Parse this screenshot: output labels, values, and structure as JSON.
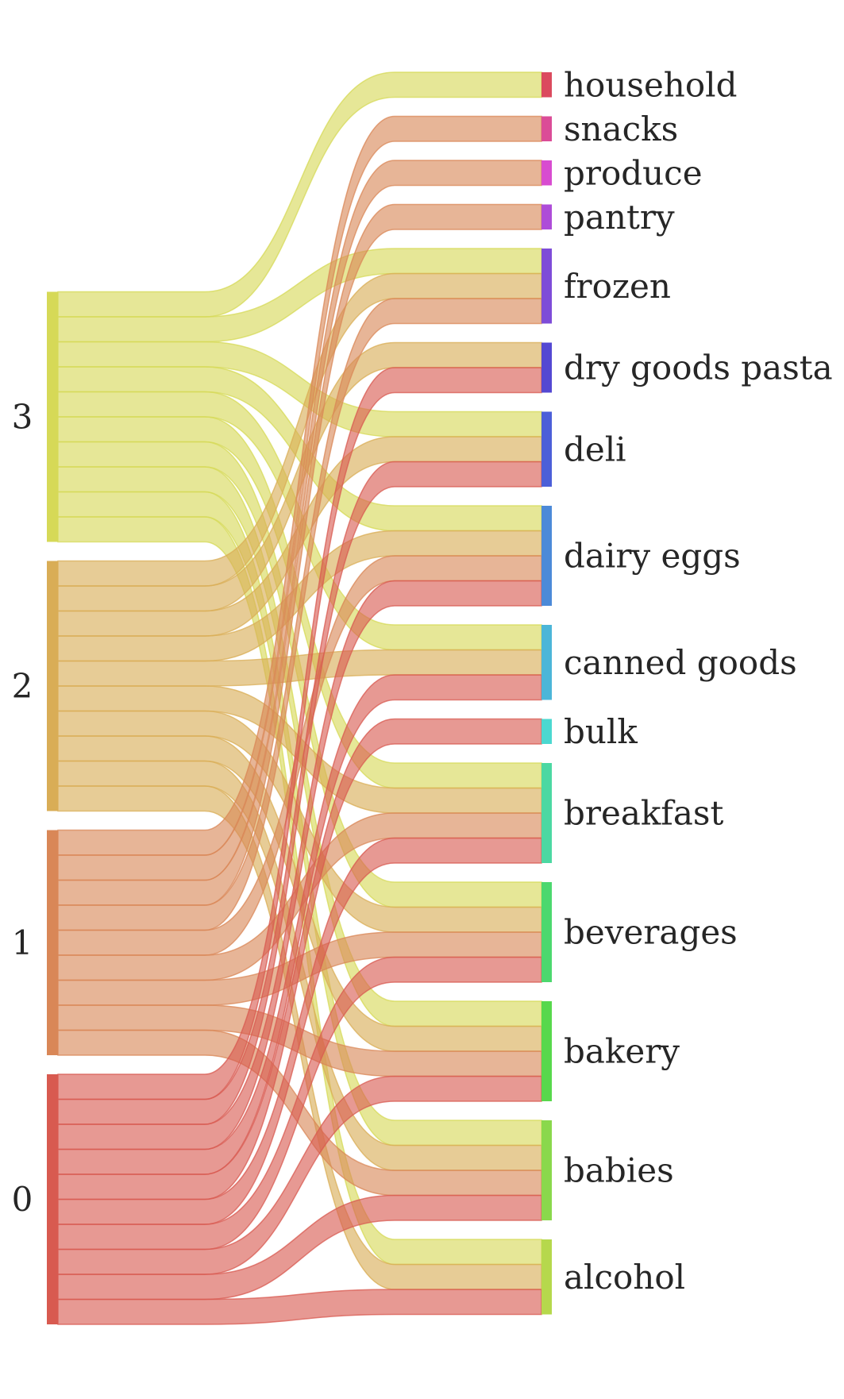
{
  "chart_data": {
    "type": "sankey",
    "title": "",
    "sources": [
      {
        "name": "0",
        "color": "#d85a50"
      },
      {
        "name": "1",
        "color": "#d98757"
      },
      {
        "name": "2",
        "color": "#d9ad56"
      },
      {
        "name": "3",
        "color": "#d6d957"
      }
    ],
    "targets": [
      {
        "name": "household",
        "color": "#db4a5e"
      },
      {
        "name": "snacks",
        "color": "#db4c97"
      },
      {
        "name": "produce",
        "color": "#d84cd0"
      },
      {
        "name": "pantry",
        "color": "#ae4cd8"
      },
      {
        "name": "frozen",
        "color": "#7e4cd8"
      },
      {
        "name": "dry goods pasta",
        "color": "#5448d2"
      },
      {
        "name": "deli",
        "color": "#4c5fd8"
      },
      {
        "name": "dairy eggs",
        "color": "#4c8ad8"
      },
      {
        "name": "canned goods",
        "color": "#4cb6d8"
      },
      {
        "name": "bulk",
        "color": "#4cd8d0"
      },
      {
        "name": "breakfast",
        "color": "#4cd8a2"
      },
      {
        "name": "beverages",
        "color": "#4cd86e"
      },
      {
        "name": "bakery",
        "color": "#58d84c"
      },
      {
        "name": "babies",
        "color": "#8ad84c"
      },
      {
        "name": "alcohol",
        "color": "#b6d84c"
      }
    ],
    "links": [
      {
        "source": "3",
        "target": "household",
        "value": 1
      },
      {
        "source": "3",
        "target": "frozen",
        "value": 1
      },
      {
        "source": "3",
        "target": "deli",
        "value": 1
      },
      {
        "source": "3",
        "target": "dairy eggs",
        "value": 1
      },
      {
        "source": "3",
        "target": "canned goods",
        "value": 1
      },
      {
        "source": "3",
        "target": "breakfast",
        "value": 1
      },
      {
        "source": "3",
        "target": "beverages",
        "value": 1
      },
      {
        "source": "3",
        "target": "bakery",
        "value": 1
      },
      {
        "source": "3",
        "target": "babies",
        "value": 1
      },
      {
        "source": "3",
        "target": "alcohol",
        "value": 1
      },
      {
        "source": "2",
        "target": "frozen",
        "value": 1
      },
      {
        "source": "2",
        "target": "dry goods pasta",
        "value": 1
      },
      {
        "source": "2",
        "target": "deli",
        "value": 1
      },
      {
        "source": "2",
        "target": "dairy eggs",
        "value": 1
      },
      {
        "source": "2",
        "target": "canned goods",
        "value": 1
      },
      {
        "source": "2",
        "target": "breakfast",
        "value": 1
      },
      {
        "source": "2",
        "target": "beverages",
        "value": 1
      },
      {
        "source": "2",
        "target": "bakery",
        "value": 1
      },
      {
        "source": "2",
        "target": "babies",
        "value": 1
      },
      {
        "source": "2",
        "target": "alcohol",
        "value": 1
      },
      {
        "source": "1",
        "target": "snacks",
        "value": 1
      },
      {
        "source": "1",
        "target": "produce",
        "value": 1
      },
      {
        "source": "1",
        "target": "pantry",
        "value": 1
      },
      {
        "source": "1",
        "target": "frozen",
        "value": 1
      },
      {
        "source": "1",
        "target": "dairy eggs",
        "value": 1
      },
      {
        "source": "1",
        "target": "breakfast",
        "value": 1
      },
      {
        "source": "1",
        "target": "beverages",
        "value": 1
      },
      {
        "source": "1",
        "target": "bakery",
        "value": 1
      },
      {
        "source": "1",
        "target": "babies",
        "value": 1
      },
      {
        "source": "0",
        "target": "dry goods pasta",
        "value": 1
      },
      {
        "source": "0",
        "target": "deli",
        "value": 1
      },
      {
        "source": "0",
        "target": "dairy eggs",
        "value": 1
      },
      {
        "source": "0",
        "target": "canned goods",
        "value": 1
      },
      {
        "source": "0",
        "target": "bulk",
        "value": 1
      },
      {
        "source": "0",
        "target": "breakfast",
        "value": 1
      },
      {
        "source": "0",
        "target": "beverages",
        "value": 1
      },
      {
        "source": "0",
        "target": "bakery",
        "value": 1
      },
      {
        "source": "0",
        "target": "babies",
        "value": 1
      },
      {
        "source": "0",
        "target": "alcohol",
        "value": 1
      }
    ]
  }
}
